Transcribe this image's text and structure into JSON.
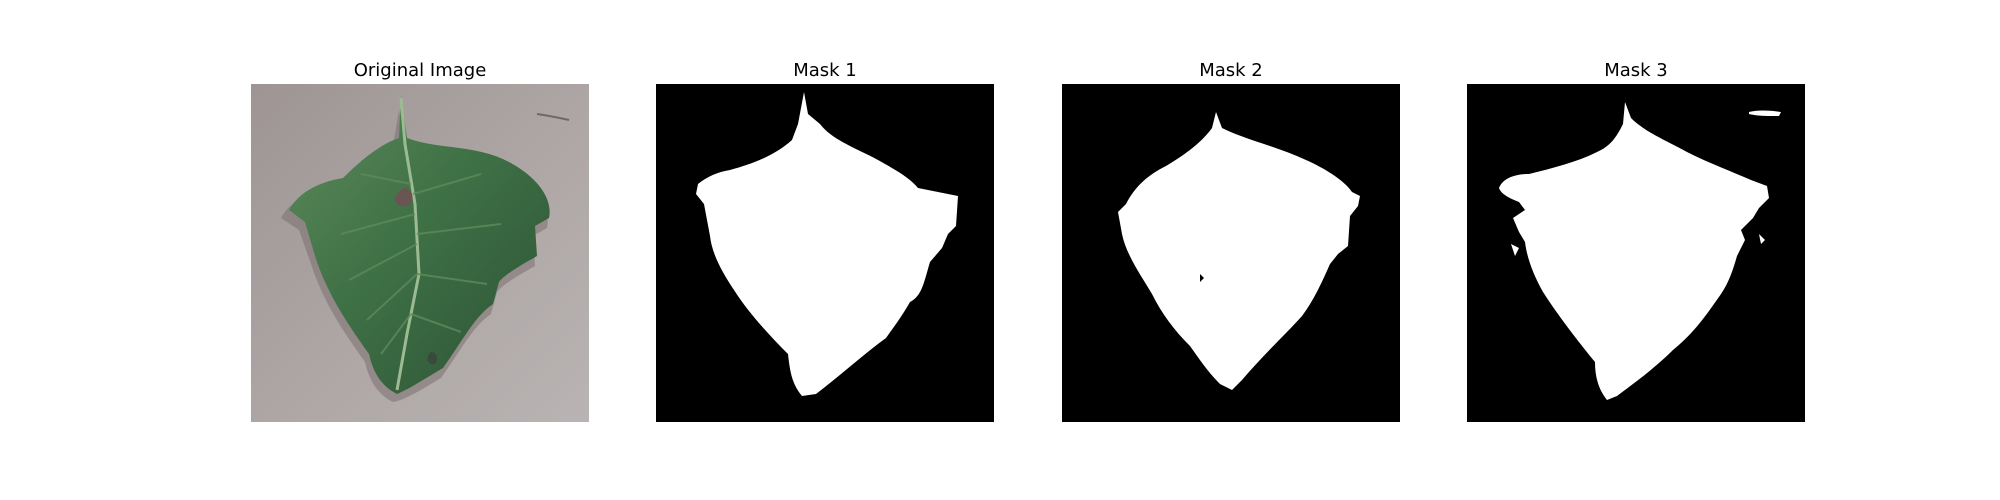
{
  "figure": {
    "panels": [
      {
        "title": "Original Image",
        "kind": "photo"
      },
      {
        "title": "Mask 1",
        "kind": "mask"
      },
      {
        "title": "Mask 2",
        "kind": "mask"
      },
      {
        "title": "Mask 3",
        "kind": "mask"
      }
    ],
    "colors": {
      "background": "#ffffff",
      "mask_background": "#000000",
      "mask_foreground": "#ffffff",
      "paper": "#a9a2a2",
      "leaf_dark": "#2f5a37",
      "leaf_mid": "#3f7146",
      "leaf_light": "#6b9464",
      "shadow": "#7b7070"
    }
  }
}
